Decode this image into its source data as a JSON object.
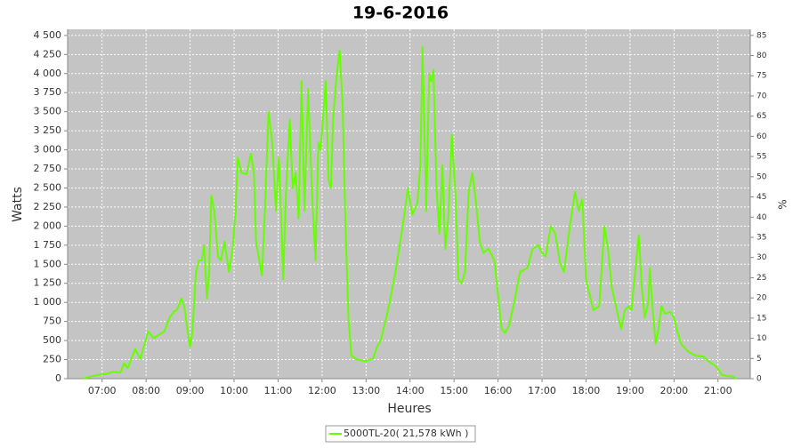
{
  "chart_data": {
    "type": "line",
    "title": "19-6-2016",
    "x_label": "Heures",
    "y_label": "Watts",
    "y2_label": "%",
    "grid": true,
    "legend": "bottom",
    "xlim": [
      "06:13",
      "21:44"
    ],
    "xticks": [
      "07:00",
      "08:00",
      "09:00",
      "10:00",
      "11:00",
      "12:00",
      "13:00",
      "14:00",
      "15:00",
      "16:00",
      "17:00",
      "18:00",
      "19:00",
      "20:00",
      "21:00"
    ],
    "ylim": [
      0,
      4580
    ],
    "yticks": [
      0,
      250,
      500,
      750,
      {
        "value": 1000,
        "label": "1 000"
      },
      {
        "value": 1250,
        "label": "1 250"
      },
      {
        "value": 1500,
        "label": "1 500"
      },
      {
        "value": 1750,
        "label": "1 750"
      },
      {
        "value": 2000,
        "label": "2 000"
      },
      {
        "value": 2250,
        "label": "2 250"
      },
      {
        "value": 2500,
        "label": "2 500"
      },
      {
        "value": 2750,
        "label": "2 750"
      },
      {
        "value": 3000,
        "label": "3 000"
      },
      {
        "value": 3250,
        "label": "3 250"
      },
      {
        "value": 3500,
        "label": "3 500"
      },
      {
        "value": 3750,
        "label": "3 750"
      },
      {
        "value": 4000,
        "label": "4 000"
      },
      {
        "value": 4250,
        "label": "4 250"
      },
      {
        "value": 4500,
        "label": "4 500"
      }
    ],
    "y2lim": [
      0,
      86.5
    ],
    "y2ticks": [
      0,
      5,
      10,
      15,
      20,
      25,
      30,
      35,
      40,
      45,
      50,
      55,
      60,
      65,
      70,
      75,
      80,
      85
    ],
    "x": [
      "06:35",
      "06:45",
      "06:55",
      "07:05",
      "07:15",
      "07:25",
      "07:30",
      "07:35",
      "07:45",
      "07:52",
      "08:03",
      "08:10",
      "08:15",
      "08:25",
      "08:32",
      "08:38",
      "08:42",
      "08:48",
      "08:52",
      "08:57",
      "09:00",
      "09:03",
      "09:08",
      "09:12",
      "09:16",
      "09:19",
      "09:23",
      "09:26",
      "09:29",
      "09:33",
      "09:38",
      "09:42",
      "09:47",
      "09:53",
      "09:58",
      "10:02",
      "10:05",
      "10:10",
      "10:17",
      "10:23",
      "10:27",
      "10:30",
      "10:38",
      "10:42",
      "10:47",
      "10:52",
      "10:57",
      "11:01",
      "11:04",
      "11:07",
      "11:11",
      "11:16",
      "11:20",
      "11:24",
      "11:28",
      "11:32",
      "11:36",
      "11:41",
      "11:46",
      "11:51",
      "11:55",
      "11:58",
      "12:02",
      "12:05",
      "12:09",
      "12:12",
      "12:15",
      "12:20",
      "12:24",
      "12:28",
      "12:32",
      "12:36",
      "12:40",
      "12:48",
      "13:00",
      "13:10",
      "13:15",
      "13:20",
      "13:30",
      "13:40",
      "13:50",
      "13:57",
      "14:03",
      "14:10",
      "14:14",
      "14:17",
      "14:22",
      "14:26",
      "14:29",
      "14:32",
      "14:36",
      "14:40",
      "14:44",
      "14:48",
      "14:52",
      "14:57",
      "15:02",
      "15:06",
      "15:10",
      "15:15",
      "15:20",
      "15:25",
      "15:30",
      "15:35",
      "15:40",
      "15:47",
      "15:55",
      "16:00",
      "16:05",
      "16:10",
      "16:15",
      "16:22",
      "16:30",
      "16:40",
      "16:47",
      "16:55",
      "17:00",
      "17:05",
      "17:12",
      "17:18",
      "17:25",
      "17:30",
      "17:38",
      "17:45",
      "17:50",
      "17:55",
      "18:00",
      "18:05",
      "18:10",
      "18:18",
      "18:25",
      "18:30",
      "18:35",
      "18:42",
      "18:48",
      "18:53",
      "18:58",
      "19:02",
      "19:08",
      "19:12",
      "19:16",
      "19:20",
      "19:25",
      "19:27",
      "19:31",
      "19:35",
      "19:38",
      "19:43",
      "19:48",
      "19:55",
      "20:00",
      "20:05",
      "20:10",
      "20:20",
      "20:30",
      "20:40",
      "20:48",
      "20:55",
      "21:00",
      "21:05",
      "21:15",
      "21:20",
      "21:25"
    ],
    "series": [
      {
        "name": "5000TL-20( 21,578 kWh )",
        "color": "#66ff00",
        "values": [
          0,
          30,
          50,
          60,
          90,
          80,
          200,
          140,
          390,
          260,
          620,
          530,
          560,
          620,
          800,
          880,
          900,
          1050,
          950,
          600,
          420,
          600,
          1400,
          1550,
          1550,
          1750,
          1050,
          1400,
          2400,
          2200,
          1600,
          1550,
          1800,
          1400,
          1700,
          2200,
          2900,
          2700,
          2680,
          2950,
          2700,
          1800,
          1350,
          2200,
          3500,
          3100,
          2200,
          2900,
          2200,
          1300,
          2500,
          3400,
          2500,
          2700,
          2100,
          3900,
          2200,
          3800,
          2500,
          1550,
          3100,
          3000,
          3500,
          3900,
          2600,
          2500,
          3400,
          4000,
          4300,
          3600,
          2000,
          800,
          300,
          250,
          230,
          270,
          420,
          500,
          900,
          1400,
          2000,
          2500,
          2150,
          2300,
          2800,
          4350,
          2200,
          4000,
          3900,
          4050,
          2500,
          1900,
          2800,
          1700,
          2100,
          3200,
          2400,
          1300,
          1250,
          1400,
          2450,
          2700,
          2300,
          1800,
          1650,
          1700,
          1550,
          1100,
          650,
          600,
          700,
          1000,
          1400,
          1450,
          1700,
          1750,
          1650,
          1600,
          2000,
          1900,
          1500,
          1400,
          2000,
          2450,
          2200,
          2350,
          1300,
          1100,
          900,
          950,
          2000,
          1700,
          1200,
          900,
          650,
          900,
          950,
          900,
          1500,
          1880,
          1200,
          800,
          1000,
          1450,
          900,
          460,
          600,
          950,
          850,
          880,
          800,
          600,
          450,
          350,
          300,
          290,
          220,
          180,
          130,
          50,
          30,
          30,
          0
        ]
      }
    ]
  }
}
